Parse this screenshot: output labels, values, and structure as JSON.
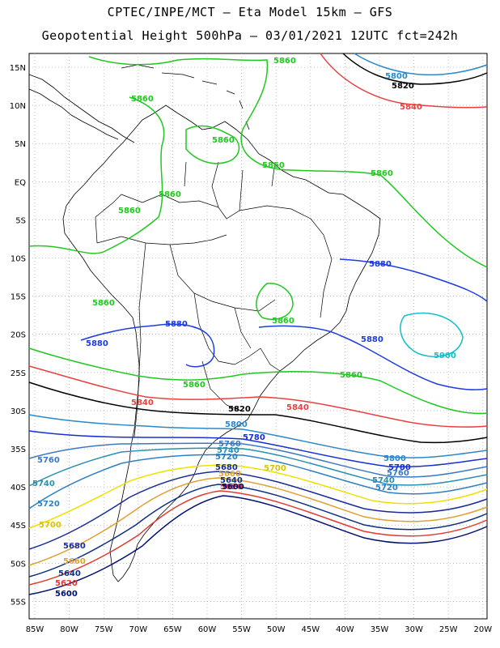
{
  "title_line1": "CPTEC/INPE/MCT –  Eta Model 15km – GFS",
  "title_line2": "Geopotential Height 500hPa – 03/01/2021 12UTC fct=242h",
  "lat_ticks": [
    "15N",
    "10N",
    "5N",
    "EQ",
    "5S",
    "10S",
    "15S",
    "20S",
    "25S",
    "30S",
    "35S",
    "40S",
    "45S",
    "50S",
    "55S"
  ],
  "lon_ticks": [
    "85W",
    "80W",
    "75W",
    "70W",
    "65W",
    "60W",
    "55W",
    "50W",
    "45W",
    "40W",
    "35W",
    "30W",
    "25W",
    "20W"
  ],
  "contours": [
    {
      "value": "5600",
      "color": "#00106e"
    },
    {
      "value": "5620",
      "color": "#e03a30"
    },
    {
      "value": "5640",
      "color": "#0c2f80"
    },
    {
      "value": "5660",
      "color": "#e0a030"
    },
    {
      "value": "5680",
      "color": "#1a2c9a"
    },
    {
      "value": "5700",
      "color": "#f0e000"
    },
    {
      "value": "5720",
      "color": "#3080c0"
    },
    {
      "value": "5740",
      "color": "#2890b0"
    },
    {
      "value": "5760",
      "color": "#3c78c0"
    },
    {
      "value": "5780",
      "color": "#1830d0"
    },
    {
      "value": "5800",
      "color": "#2c88c8"
    },
    {
      "value": "5820",
      "color": "#000000"
    },
    {
      "value": "5840",
      "color": "#e84040"
    },
    {
      "value": "5860",
      "color": "#20c820"
    },
    {
      "value": "5880",
      "color": "#1c3ce0"
    },
    {
      "value": "5900",
      "color": "#10c0c8"
    }
  ],
  "labels": {
    "top_5800": "5800",
    "top_5820": "5820",
    "top_5840": "5840",
    "green_a": "5860",
    "green_b": "5860",
    "green_c": "5860",
    "green_d": "5860",
    "green_e": "5860",
    "green_f": "5860",
    "green_g": "5860",
    "green_h": "5860",
    "green_i": "5860",
    "green_j": "5860",
    "green_k": "5860",
    "blue_a": "5880",
    "blue_b": "5880",
    "blue_c": "5880",
    "blue_d": "5880",
    "cyan_a": "5900",
    "red_mid_a": "5840",
    "red_mid_b": "5840",
    "black_a": "5820",
    "c5800_a": "5800",
    "c5800_b": "5800",
    "c5780_a": "5780",
    "c5780_b": "5780",
    "c5760_a": "5760",
    "c5760_b": "5760",
    "c5760_c": "5760",
    "c5740_a": "5740",
    "c5740_b": "5740",
    "c5740_c": "5740",
    "c5720_a": "5720",
    "c5720_b": "5720",
    "c5720_c": "5720",
    "c5700_a": "5700",
    "c5700_b": "5700",
    "c5680_a": "5680",
    "c5680_b": "5680",
    "c5660_a": "5660",
    "c5660_b": "5660",
    "c5640_a": "5640",
    "c5640_b": "5640",
    "c5620_a": "5620",
    "c5620_b": "5620",
    "c5600_a": "5600",
    "c5600_b": "5600"
  }
}
